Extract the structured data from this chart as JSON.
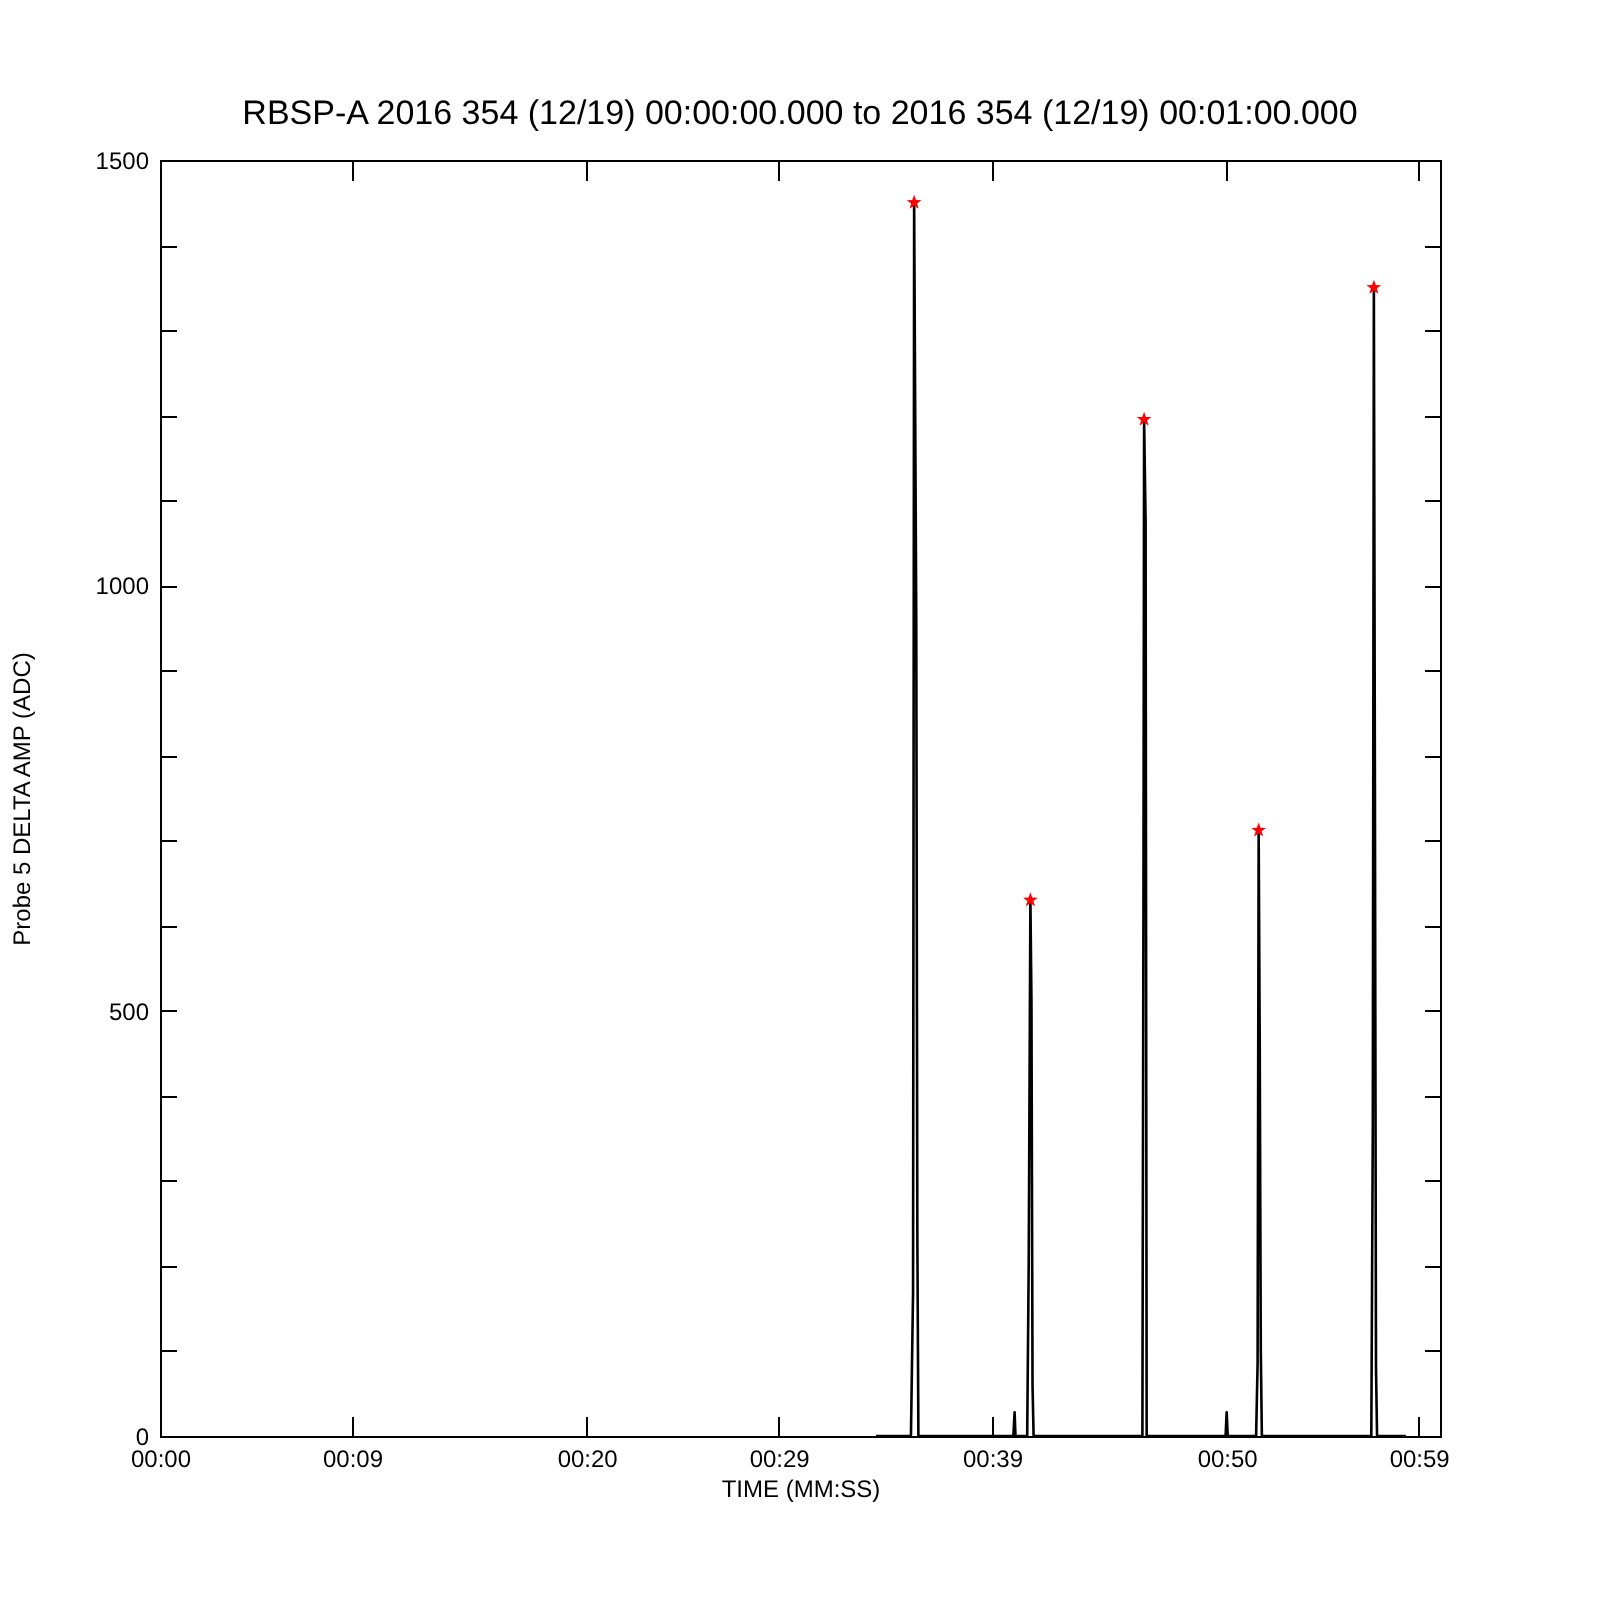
{
  "chart_data": {
    "type": "line",
    "title": "RBSP-A 2016 354 (12/19) 00:00:00.000 to 2016 354 (12/19) 00:01:00.000",
    "xlabel": "TIME (MM:SS)",
    "ylabel": "Probe 5 DELTA AMP (ADC)",
    "xlim": [
      0,
      60
    ],
    "ylim": [
      0,
      1500
    ],
    "xticks": [
      {
        "value": 0,
        "label": "00:00"
      },
      {
        "value": 9,
        "label": "00:09"
      },
      {
        "value": 20,
        "label": "00:20"
      },
      {
        "value": 29,
        "label": "00:29"
      },
      {
        "value": 39,
        "label": "00:39"
      },
      {
        "value": 50,
        "label": "00:50"
      },
      {
        "value": 59,
        "label": "00:59"
      }
    ],
    "yticks": [
      0,
      {
        "value": 100,
        "label": null
      },
      {
        "value": 200,
        "label": null
      },
      {
        "value": 300,
        "label": null
      },
      {
        "value": 400,
        "label": null
      },
      500,
      {
        "value": 600,
        "label": null
      },
      {
        "value": 700,
        "label": null
      },
      {
        "value": 800,
        "label": null
      },
      {
        "value": 900,
        "label": null
      },
      1000,
      {
        "value": 1100,
        "label": null
      },
      {
        "value": 1200,
        "label": null
      },
      {
        "value": 1300,
        "label": null
      },
      {
        "value": 1400,
        "label": null
      },
      1500
    ],
    "grid": false,
    "series": [
      {
        "type": "line",
        "color": "#000000",
        "x": [
          33.56,
          35.2,
          35.3,
          35.35,
          35.45,
          35.5,
          35.55,
          40.0,
          40.06,
          40.1,
          40.65,
          40.72,
          40.8,
          40.85,
          40.9,
          40.95,
          46.05,
          46.1,
          46.13,
          46.2,
          46.25,
          49.95,
          50.0,
          50.05,
          51.38,
          51.45,
          51.5,
          51.55,
          51.6,
          51.65,
          56.78,
          56.85,
          56.9,
          56.95,
          57.0,
          57.05,
          58.4
        ],
        "values": [
          0,
          0,
          170,
          1450,
          960,
          240,
          0,
          0,
          28,
          0,
          0,
          200,
          630,
          510,
          60,
          0,
          0,
          635,
          1195,
          1075,
          0,
          0,
          28,
          0,
          0,
          85,
          712,
          460,
          100,
          0,
          0,
          360,
          1350,
          755,
          80,
          0,
          0
        ]
      },
      {
        "type": "scatter",
        "color": "#ff0000",
        "marker": "star",
        "x": [
          35.35,
          40.8,
          46.13,
          51.5,
          56.9
        ],
        "values": [
          1450,
          630,
          1195,
          712,
          1350
        ]
      }
    ]
  }
}
